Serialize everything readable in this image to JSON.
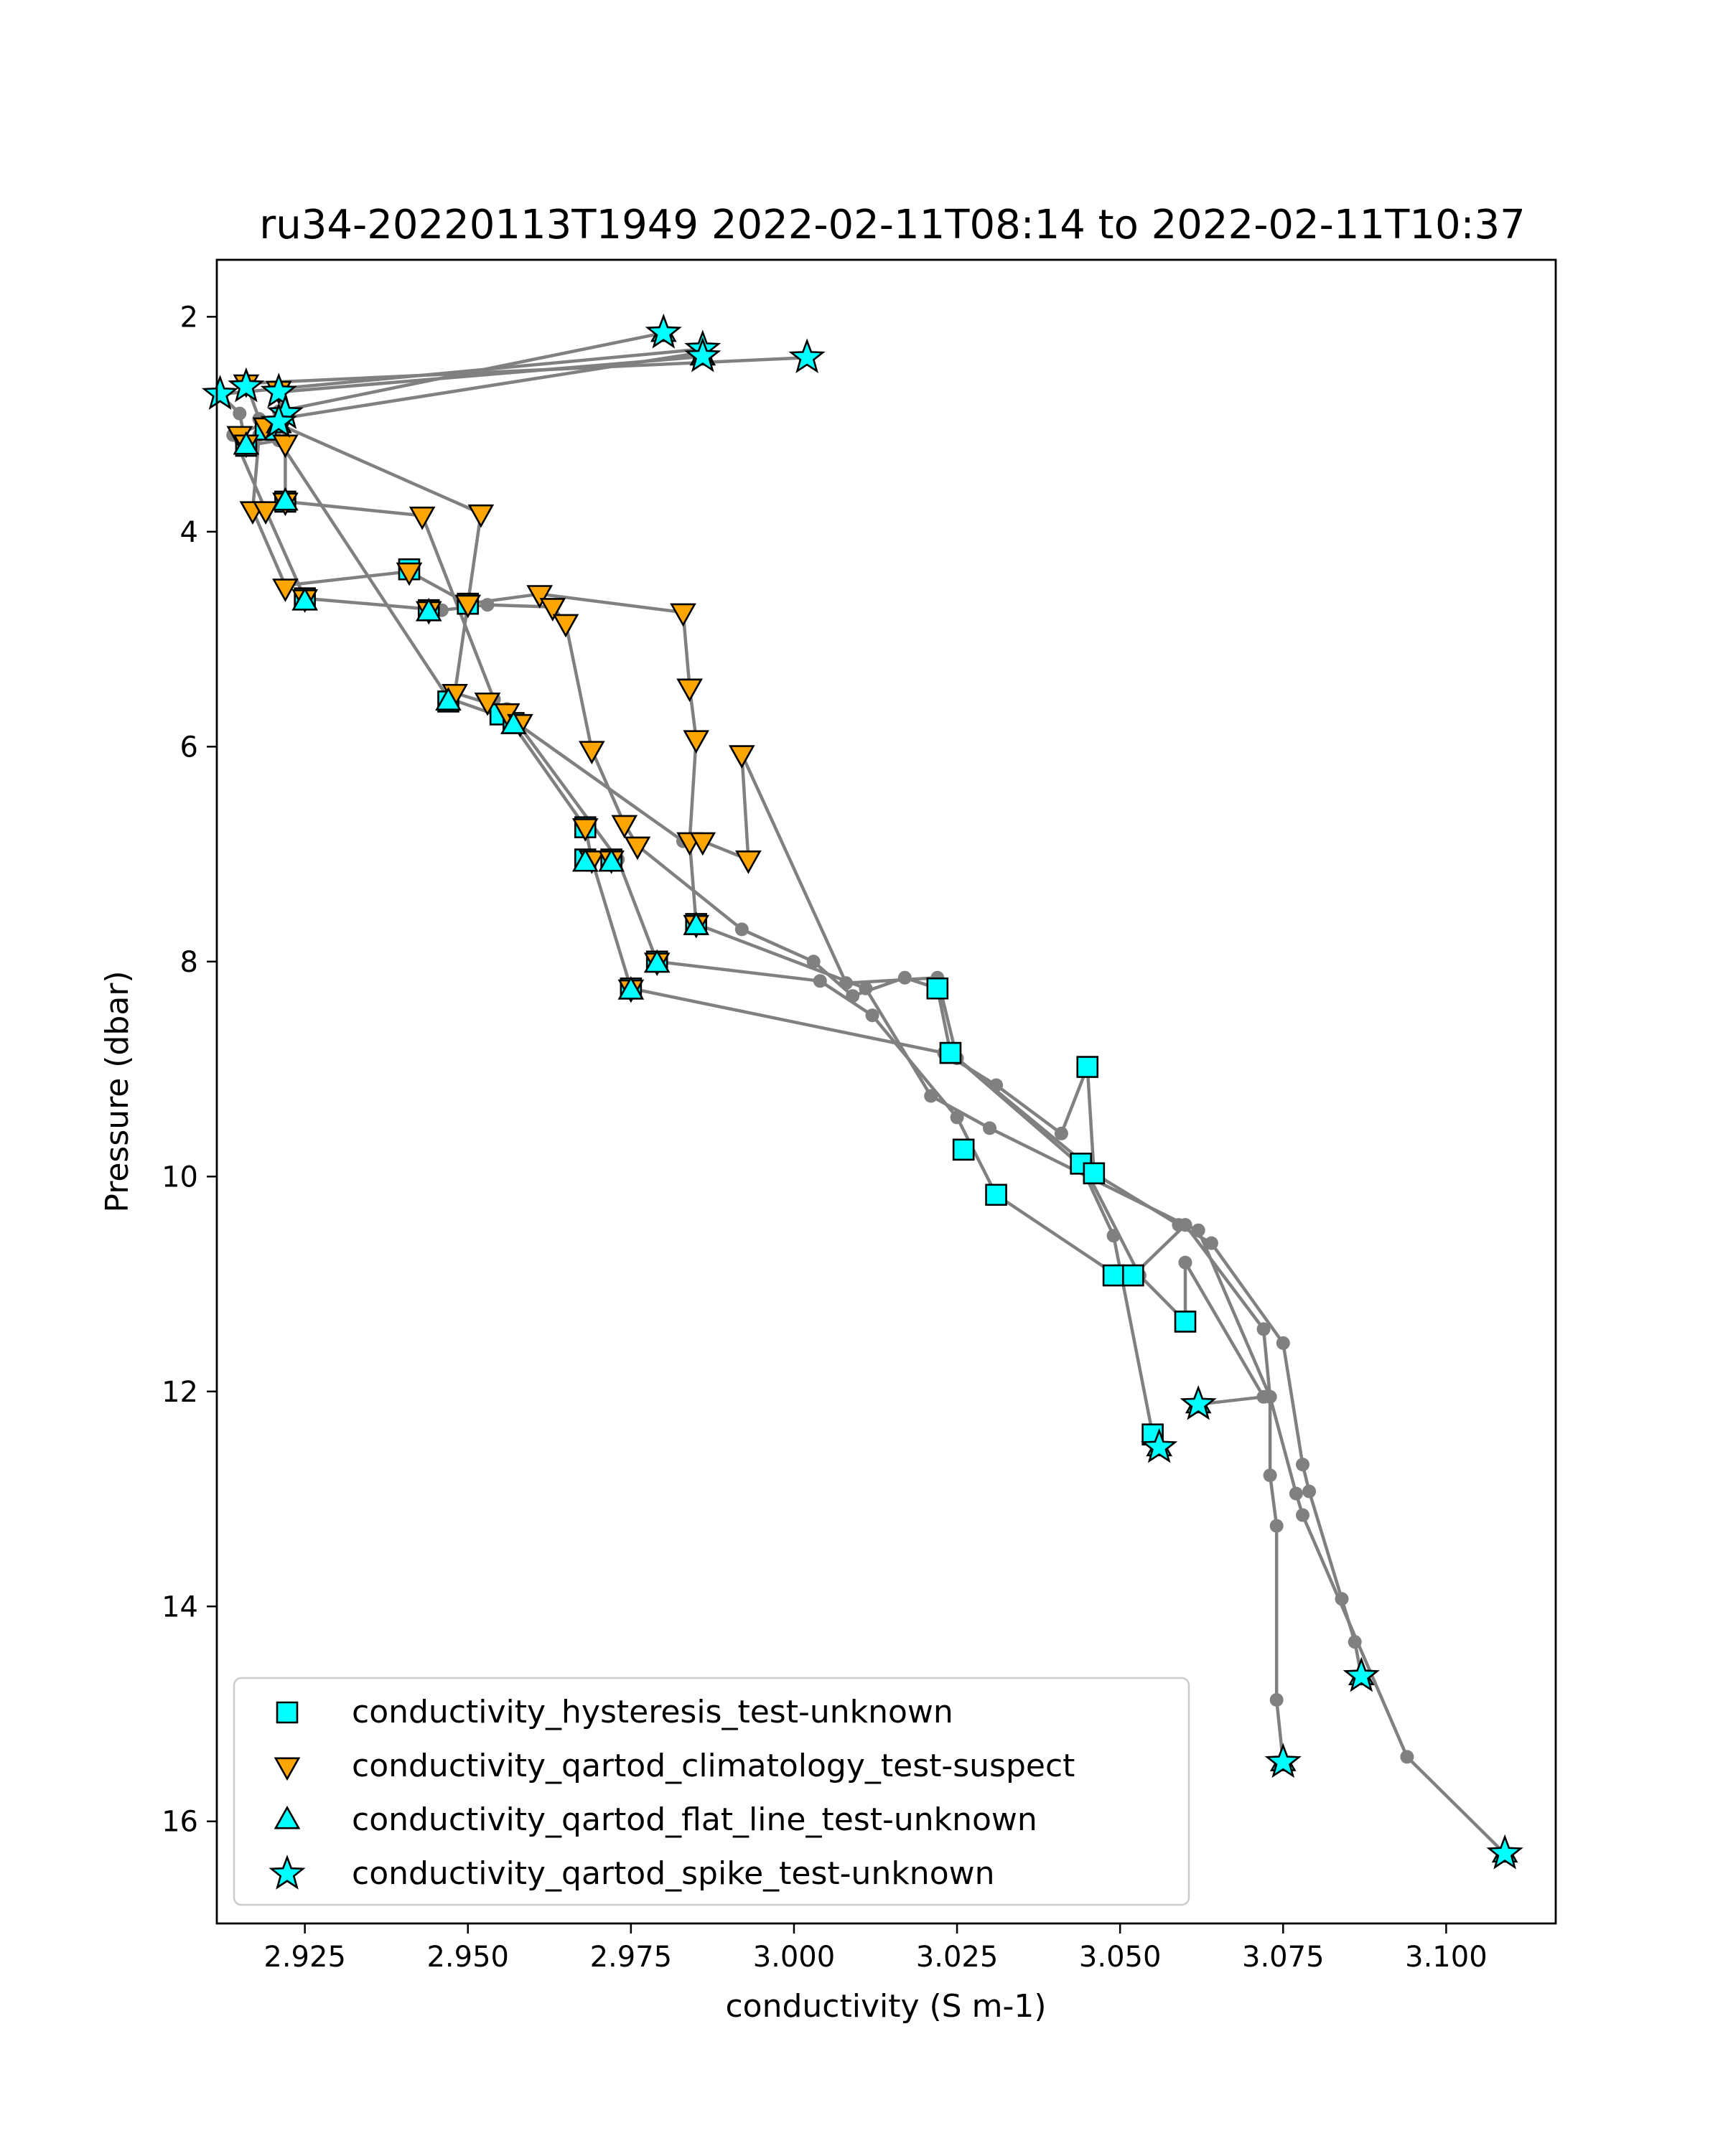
{
  "chart_data": {
    "type": "scatter",
    "title": "ru34-20220113T1949 2022-02-11T08:14 to 2022-02-11T10:37",
    "xlabel": "conductivity (S m-1)",
    "ylabel": "Pressure (dbar)",
    "xlim": [
      2.9115,
      3.1168
    ],
    "ylim": [
      16.95,
      1.47
    ],
    "y_inverted": true,
    "xticks": [
      {
        "value": 2.925,
        "label": "2.925"
      },
      {
        "value": 2.95,
        "label": "2.950"
      },
      {
        "value": 2.975,
        "label": "2.975"
      },
      {
        "value": 3.0,
        "label": "3.000"
      },
      {
        "value": 3.025,
        "label": "3.025"
      },
      {
        "value": 3.05,
        "label": "3.050"
      },
      {
        "value": 3.075,
        "label": "3.075"
      },
      {
        "value": 3.1,
        "label": "3.100"
      }
    ],
    "yticks": [
      {
        "value": 2,
        "label": "2"
      },
      {
        "value": 4,
        "label": "4"
      },
      {
        "value": 6,
        "label": "6"
      },
      {
        "value": 8,
        "label": "8"
      },
      {
        "value": 10,
        "label": "10"
      },
      {
        "value": 12,
        "label": "12"
      },
      {
        "value": 14,
        "label": "14"
      },
      {
        "value": 16,
        "label": "16"
      }
    ],
    "grid": false,
    "legend_position": "lower-left",
    "profile_line_color": "#808080",
    "profiles": [
      [
        [
          2.98,
          2.15
        ],
        [
          2.921,
          2.88
        ],
        [
          2.918,
          3.1
        ],
        [
          2.917,
          3.8
        ],
        [
          2.922,
          4.5
        ],
        [
          2.941,
          4.37
        ],
        [
          2.95,
          4.67
        ],
        [
          2.961,
          4.58
        ],
        [
          2.983,
          4.75
        ],
        [
          2.984,
          5.45
        ],
        [
          2.985,
          5.93
        ],
        [
          2.984,
          6.88
        ],
        [
          2.985,
          7.65
        ],
        [
          3.011,
          8.25
        ],
        [
          3.021,
          9.25
        ],
        [
          3.03,
          9.55
        ],
        [
          3.06,
          10.45
        ],
        [
          3.072,
          11.42
        ],
        [
          3.073,
          12.05
        ],
        [
          3.073,
          12.78
        ],
        [
          3.074,
          13.25
        ],
        [
          3.074,
          14.87
        ],
        [
          3.075,
          15.45
        ]
      ],
      [
        [
          2.986,
          2.33
        ],
        [
          2.921,
          2.95
        ],
        [
          2.914,
          3.1
        ],
        [
          2.919,
          3.8
        ],
        [
          2.925,
          4.62
        ],
        [
          2.946,
          4.73
        ],
        [
          2.953,
          4.68
        ],
        [
          2.963,
          4.7
        ],
        [
          2.965,
          4.85
        ],
        [
          2.969,
          6.03
        ],
        [
          2.974,
          6.72
        ],
        [
          2.976,
          6.92
        ],
        [
          2.992,
          7.7
        ],
        [
          3.003,
          8.0
        ],
        [
          3.009,
          8.32
        ],
        [
          3.017,
          8.15
        ],
        [
          3.022,
          8.25
        ],
        [
          3.024,
          8.85
        ],
        [
          3.044,
          9.9
        ],
        [
          3.049,
          10.55
        ],
        [
          3.055,
          12.4
        ],
        [
          3.056,
          12.52
        ]
      ],
      [
        [
          2.986,
          2.37
        ],
        [
          2.921,
          2.7
        ],
        [
          2.922,
          3.18
        ],
        [
          2.922,
          3.72
        ],
        [
          2.943,
          3.85
        ],
        [
          2.954,
          5.56
        ],
        [
          2.957,
          5.8
        ],
        [
          2.968,
          6.75
        ],
        [
          2.969,
          7.05
        ],
        [
          2.975,
          8.25
        ],
        [
          3.023,
          8.85
        ],
        [
          3.031,
          9.15
        ],
        [
          3.041,
          9.6
        ],
        [
          3.045,
          8.98
        ],
        [
          3.046,
          9.97
        ],
        [
          3.059,
          10.45
        ],
        [
          3.064,
          10.62
        ],
        [
          3.075,
          11.55
        ],
        [
          3.078,
          12.68
        ],
        [
          3.079,
          12.93
        ],
        [
          3.084,
          13.93
        ],
        [
          3.086,
          14.33
        ],
        [
          3.087,
          14.65
        ]
      ],
      [
        [
          3.002,
          2.38
        ],
        [
          2.916,
          2.62
        ],
        [
          2.918,
          2.95
        ],
        [
          2.921,
          3.0
        ],
        [
          2.952,
          3.83
        ],
        [
          2.948,
          5.5
        ],
        [
          2.956,
          5.65
        ],
        [
          2.973,
          7.05
        ],
        [
          2.979,
          8.0
        ],
        [
          3.004,
          8.18
        ],
        [
          3.012,
          8.5
        ],
        [
          3.025,
          9.45
        ],
        [
          3.031,
          10.17
        ],
        [
          3.049,
          10.9
        ],
        [
          3.052,
          10.92
        ],
        [
          3.06,
          10.45
        ],
        [
          3.062,
          10.5
        ],
        [
          3.073,
          12.05
        ],
        [
          3.077,
          12.95
        ],
        [
          3.078,
          13.15
        ],
        [
          3.094,
          15.4
        ],
        [
          3.109,
          16.3
        ]
      ],
      [
        [
          2.986,
          2.3
        ],
        [
          2.912,
          2.72
        ],
        [
          2.915,
          2.9
        ],
        [
          2.916,
          3.2
        ],
        [
          2.921,
          3.15
        ],
        [
          2.947,
          5.55
        ],
        [
          2.957,
          5.76
        ],
        [
          2.983,
          6.88
        ],
        [
          2.986,
          6.88
        ],
        [
          2.993,
          7.05
        ],
        [
          2.992,
          6.07
        ],
        [
          3.008,
          8.2
        ],
        [
          3.022,
          8.15
        ],
        [
          3.025,
          8.9
        ],
        [
          3.044,
          9.85
        ],
        [
          3.053,
          10.92
        ],
        [
          3.06,
          11.35
        ],
        [
          3.06,
          10.8
        ],
        [
          3.072,
          12.05
        ],
        [
          3.062,
          12.12
        ]
      ]
    ],
    "series": [
      {
        "name": "conductivity_hysteresis_test-unknown",
        "marker": "square",
        "color": "#00ffff",
        "points": [
          [
            3.022,
            8.25
          ],
          [
            3.024,
            8.85
          ],
          [
            3.045,
            8.98
          ],
          [
            3.026,
            9.75
          ],
          [
            3.044,
            9.88
          ],
          [
            3.046,
            9.97
          ],
          [
            3.031,
            10.17
          ],
          [
            3.049,
            10.92
          ],
          [
            3.052,
            10.92
          ],
          [
            3.06,
            11.35
          ],
          [
            3.055,
            12.4
          ],
          [
            2.941,
            4.35
          ],
          [
            2.95,
            4.67
          ],
          [
            2.944,
            4.73
          ],
          [
            2.925,
            4.62
          ],
          [
            2.947,
            5.58
          ],
          [
            2.955,
            5.7
          ],
          [
            2.957,
            5.78
          ],
          [
            2.968,
            6.75
          ],
          [
            2.968,
            7.05
          ],
          [
            2.972,
            7.05
          ],
          [
            2.985,
            7.65
          ],
          [
            2.979,
            8.0
          ],
          [
            2.975,
            8.25
          ],
          [
            2.922,
            3.72
          ],
          [
            2.916,
            3.2
          ],
          [
            2.919,
            3.05
          ]
        ]
      },
      {
        "name": "conductivity_qartod_climatology_test-suspect",
        "marker": "triangle-down",
        "color": "#ffa500",
        "points": [
          [
            2.915,
            3.1
          ],
          [
            2.916,
            3.18
          ],
          [
            2.919,
            3.02
          ],
          [
            2.922,
            3.18
          ],
          [
            2.917,
            3.8
          ],
          [
            2.919,
            3.8
          ],
          [
            2.922,
            3.72
          ],
          [
            2.943,
            3.85
          ],
          [
            2.952,
            3.83
          ],
          [
            2.922,
            4.52
          ],
          [
            2.925,
            4.62
          ],
          [
            2.941,
            4.37
          ],
          [
            2.944,
            4.73
          ],
          [
            2.95,
            4.67
          ],
          [
            2.961,
            4.58
          ],
          [
            2.963,
            4.7
          ],
          [
            2.965,
            4.85
          ],
          [
            2.983,
            4.75
          ],
          [
            2.984,
            5.45
          ],
          [
            2.985,
            5.93
          ],
          [
            2.992,
            6.07
          ],
          [
            2.969,
            6.03
          ],
          [
            2.948,
            5.5
          ],
          [
            2.953,
            5.58
          ],
          [
            2.956,
            5.68
          ],
          [
            2.958,
            5.78
          ],
          [
            2.968,
            6.75
          ],
          [
            2.974,
            6.72
          ],
          [
            2.976,
            6.92
          ],
          [
            2.984,
            6.88
          ],
          [
            2.986,
            6.88
          ],
          [
            2.993,
            7.05
          ],
          [
            2.969,
            7.05
          ],
          [
            2.972,
            7.05
          ],
          [
            2.985,
            7.65
          ],
          [
            2.979,
            8.0
          ],
          [
            2.975,
            8.25
          ],
          [
            2.916,
            2.62
          ],
          [
            2.921,
            2.68
          ],
          [
            2.922,
            2.93
          ]
        ]
      },
      {
        "name": "conductivity_qartod_flat_line_test-unknown",
        "marker": "triangle-up",
        "color": "#00ffff",
        "points": [
          [
            2.922,
            3.72
          ],
          [
            2.916,
            3.2
          ],
          [
            2.925,
            4.65
          ],
          [
            2.944,
            4.75
          ],
          [
            2.947,
            5.58
          ],
          [
            2.968,
            7.08
          ],
          [
            2.972,
            7.08
          ],
          [
            2.979,
            8.02
          ],
          [
            2.975,
            8.27
          ],
          [
            2.985,
            7.67
          ],
          [
            2.957,
            5.8
          ],
          [
            2.98,
            2.15
          ],
          [
            2.986,
            2.37
          ],
          [
            2.921,
            3.0
          ],
          [
            3.109,
            16.3
          ],
          [
            3.075,
            15.45
          ],
          [
            3.087,
            14.65
          ],
          [
            3.056,
            12.52
          ],
          [
            3.062,
            12.12
          ]
        ]
      },
      {
        "name": "conductivity_qartod_spike_test-unknown",
        "marker": "star",
        "color": "#00ffff",
        "points": [
          [
            2.98,
            2.15
          ],
          [
            2.986,
            2.3
          ],
          [
            2.986,
            2.37
          ],
          [
            3.002,
            2.38
          ],
          [
            2.912,
            2.72
          ],
          [
            2.916,
            2.65
          ],
          [
            2.921,
            2.7
          ],
          [
            2.922,
            2.9
          ],
          [
            2.921,
            2.98
          ],
          [
            3.062,
            12.12
          ],
          [
            3.056,
            12.52
          ],
          [
            3.075,
            15.45
          ],
          [
            3.087,
            14.65
          ],
          [
            3.109,
            16.3
          ]
        ]
      }
    ]
  }
}
